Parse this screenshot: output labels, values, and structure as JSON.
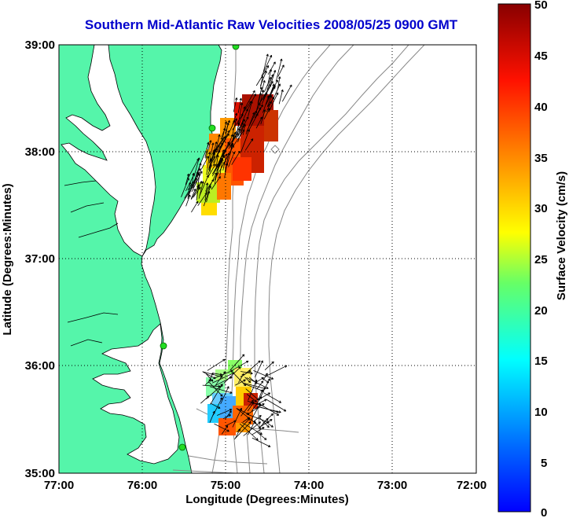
{
  "title": "Southern Mid-Atlantic Raw Velocities 2008/05/25 0900 GMT",
  "xlabel": "Longitude (Degrees:Minutes)",
  "ylabel": "Latitude (Degrees:Minutes)",
  "colorbar_label": "Surface Velocity (cm/s)",
  "x_ticks": [
    "77:00",
    "76:00",
    "75:00",
    "74:00",
    "73:00",
    "72:00"
  ],
  "y_ticks": [
    "39:00",
    "38:00",
    "37:00",
    "36:00",
    "35:00"
  ],
  "colorbar_ticks": [
    "50",
    "45",
    "40",
    "35",
    "30",
    "25",
    "20",
    "15",
    "10",
    "5",
    "0"
  ],
  "chart_data": {
    "type": "heatmap",
    "x_range": [
      -77,
      -72
    ],
    "y_range": [
      35,
      39
    ],
    "value_range": [
      0,
      50
    ],
    "grid": true,
    "colors": {
      "land": "#55f5aa",
      "water": "#ffffff",
      "contour": "#888888",
      "arrows": "#000000",
      "title": "#0000cc",
      "stations": "#22dd22"
    },
    "stations": [
      [
        -74.95,
        39.0
      ],
      [
        -75.15,
        38.27
      ],
      [
        -75.58,
        36.2
      ],
      [
        -75.5,
        35.32
      ]
    ],
    "regions": [
      {
        "name": "",
        "lon": [
          -75.4,
          -74.3
        ],
        "lat": [
          37.45,
          38.5
        ],
        "speed_min": 18,
        "speed_max": 50
      },
      {
        "name": "",
        "lon": [
          -75.2,
          -74.6
        ],
        "lat": [
          35.35,
          36.05
        ],
        "speed_min": 8,
        "speed_max": 45
      }
    ]
  }
}
